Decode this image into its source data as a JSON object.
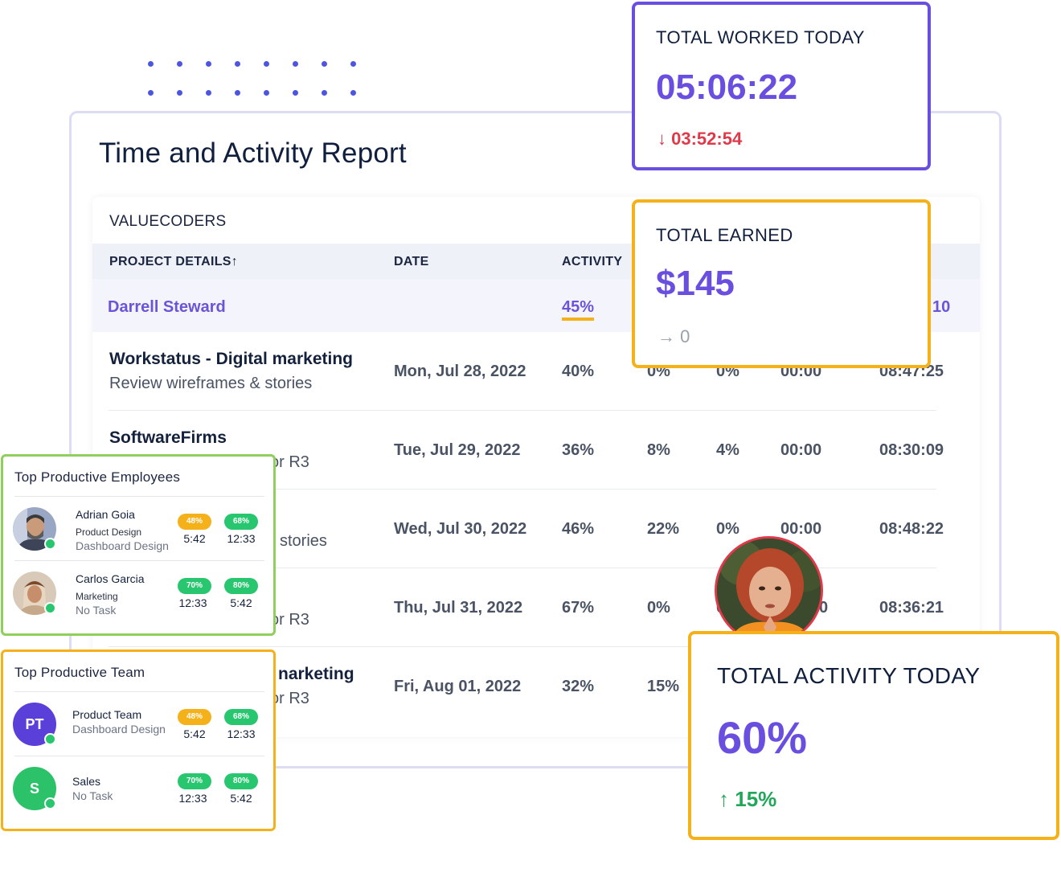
{
  "report": {
    "title": "Time and Activity Report",
    "organization": "VALUECODERS",
    "columns": [
      "PROJECT DETAILS↑",
      "DATE",
      "ACTIVITY"
    ],
    "highlight": {
      "name": "Darrell Steward",
      "activity": "45%",
      "trailing": "10"
    },
    "rows": [
      {
        "project": "Workstatus - Digital marketing",
        "task": "Review wireframes & stories",
        "date": "Mon, Jul 28, 2022",
        "activity": "40%",
        "c4": "0%",
        "c5": "0%",
        "c6": "00:00",
        "c7": "08:47:25"
      },
      {
        "project": "SoftwareFirms",
        "task": "or R3",
        "date": "Tue, Jul 29, 2022",
        "activity": "36%",
        "c4": "8%",
        "c5": "4%",
        "c6": "00:00",
        "c7": "08:30:09"
      },
      {
        "project": "",
        "task": "stories",
        "date": "Wed, Jul 30, 2022",
        "activity": "46%",
        "c4": "22%",
        "c5": "0%",
        "c6": "00:00",
        "c7": "08:48:22"
      },
      {
        "project": "",
        "task": "or R3",
        "date": "Thu, Jul 31, 2022",
        "activity": "67%",
        "c4": "0%",
        "c5": "0",
        "c6": "0",
        "c7": "08:36:21"
      },
      {
        "project": "narketing",
        "task": "or R3",
        "date": "Fri, Aug 01, 2022",
        "activity": "32%",
        "c4": "15%",
        "c5": "",
        "c6": "",
        "c7": ""
      }
    ]
  },
  "cards": {
    "worked": {
      "label": "TOTAL WORKED TODAY",
      "value": "05:06:22",
      "change": "03:52:54",
      "arrow": "↓",
      "color": "#e0394a"
    },
    "earned": {
      "label": "TOTAL EARNED",
      "value": "$145",
      "change": "0",
      "arrow": "→",
      "color": "#9aa0ad"
    },
    "activity": {
      "label": "TOTAL ACTIVITY TODAY",
      "value": "60%",
      "change": "15%",
      "arrow": "↑",
      "color": "#22a65a"
    }
  },
  "employees": {
    "title": "Top Productive Employees",
    "items": [
      {
        "name": "Adrian Goia",
        "role": "Product Design",
        "task": "Dashboard Design",
        "p1": "48%",
        "p2": "68%",
        "t1": "5:42",
        "t2": "12:33"
      },
      {
        "name": "Carlos Garcia",
        "role": "Marketing",
        "task": "No Task",
        "p1": "70%",
        "p2": "80%",
        "t1": "12:33",
        "t2": "5:42"
      }
    ]
  },
  "teams": {
    "title": "Top Productive Team",
    "items": [
      {
        "initials": "PT",
        "name": "Product Team",
        "task": "Dashboard Design",
        "p1": "48%",
        "p2": "68%",
        "t1": "5:42",
        "t2": "12:33"
      },
      {
        "initials": "S",
        "name": "Sales",
        "task": "No Task",
        "p1": "70%",
        "p2": "80%",
        "t1": "12:33",
        "t2": "5:42"
      }
    ]
  },
  "colors": {
    "accent": "#6a4ee0",
    "warning": "#f5b11a",
    "success": "#28c76f",
    "danger": "#e0394a"
  }
}
